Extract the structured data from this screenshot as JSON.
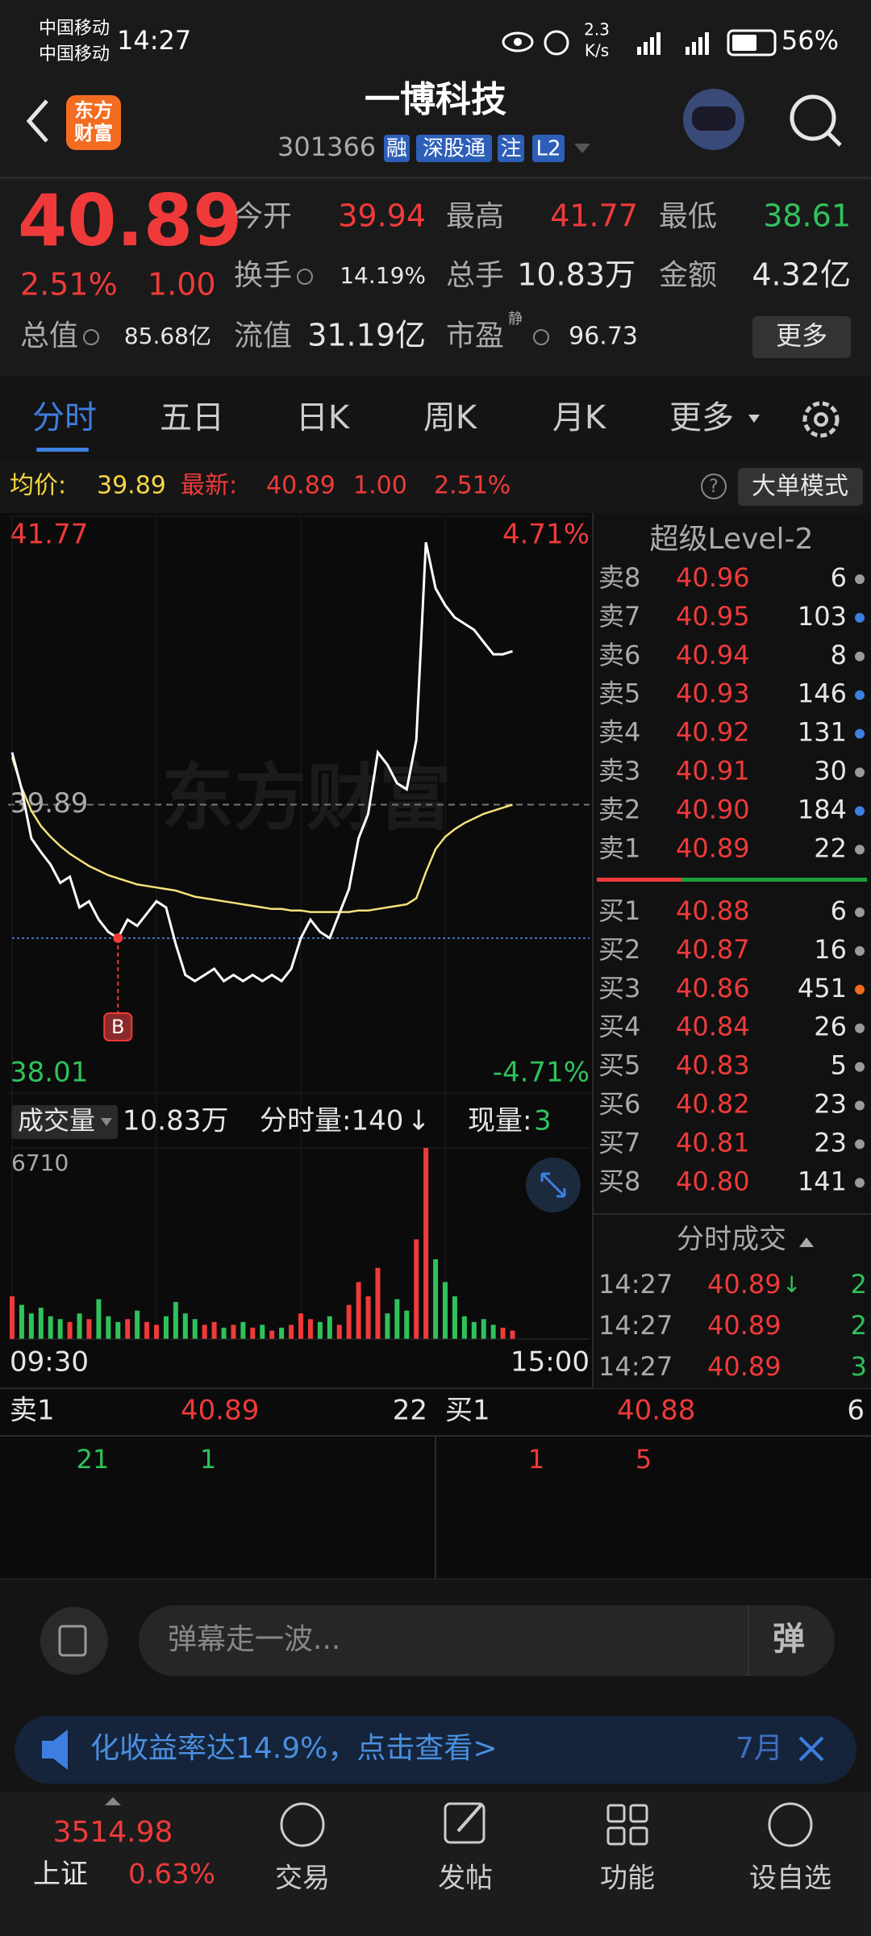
{
  "status_bar": {
    "carrier": [
      "中国移动",
      "中国移动"
    ],
    "time": "14:27",
    "net_speed": [
      "2.3",
      "K/s"
    ],
    "battery": "56%"
  },
  "header": {
    "logo": [
      "东方",
      "财富"
    ],
    "title": "一博科技",
    "code": "301366",
    "tags": [
      "融",
      "深股通",
      "注",
      "L2"
    ]
  },
  "quote": {
    "price": "40.89",
    "change_pct": "2.51%",
    "change": "1.00",
    "stats": [
      {
        "label": "今开",
        "value": "39.94",
        "color": "#f03a3a"
      },
      {
        "label": "最高",
        "value": "41.77",
        "color": "#f03a3a"
      },
      {
        "label": "最低",
        "value": "38.61",
        "color": "#2fc25b"
      },
      {
        "label": "换手",
        "value": "14.19%",
        "color": "#e6e6e6"
      },
      {
        "label": "总手",
        "value": "10.83万",
        "color": "#e6e6e6"
      },
      {
        "label": "金额",
        "value": "4.32亿",
        "color": "#e6e6e6"
      },
      {
        "label": "总值",
        "value": "85.68亿",
        "color": "#e6e6e6"
      },
      {
        "label": "流值",
        "value": "31.19亿",
        "color": "#e6e6e6"
      },
      {
        "label": "市盈",
        "superscript": "静",
        "value": "96.73",
        "color": "#e6e6e6"
      }
    ],
    "more": "更多"
  },
  "tabs": {
    "items": [
      "分时",
      "五日",
      "日K",
      "周K",
      "月K",
      "更多"
    ],
    "active": 0
  },
  "info_bar": {
    "avg_label": "均价:",
    "avg": "39.89",
    "latest_label": "最新:",
    "latest": "40.89",
    "change": "1.00",
    "change_pct": "2.51%",
    "help": "?",
    "mode": "大单模式"
  },
  "intraday": {
    "xlim": [
      0,
      240
    ],
    "time_labels": [
      "09:30",
      "15:00"
    ],
    "ylim": [
      38.01,
      41.77
    ],
    "yticks": [
      38.01,
      39.89,
      41.77
    ],
    "tick_colors": [
      "#2fc25b",
      "#aaaaaa",
      "#f03a3a"
    ],
    "pct_labels": [
      "-4.71%",
      "4.71%"
    ],
    "watermark": "东方财富",
    "x": [
      0,
      4,
      8,
      12,
      16,
      20,
      24,
      28,
      32,
      36,
      40,
      44,
      48,
      52,
      56,
      60,
      64,
      68,
      72,
      76,
      80,
      84,
      88,
      92,
      96,
      100,
      104,
      108,
      112,
      116,
      120,
      124,
      128,
      132,
      136,
      140,
      144,
      148,
      152,
      156,
      160,
      164,
      168,
      172,
      176,
      180,
      184,
      188,
      192,
      196,
      200,
      204,
      208
    ],
    "price": {
      "color": "#ffffff",
      "values": [
        40.23,
        39.99,
        39.67,
        39.58,
        39.5,
        39.38,
        39.42,
        39.22,
        39.26,
        39.14,
        39.06,
        39.02,
        39.14,
        39.1,
        39.18,
        39.26,
        39.22,
        38.98,
        38.78,
        38.74,
        38.78,
        38.82,
        38.74,
        38.78,
        38.74,
        38.78,
        38.74,
        38.78,
        38.74,
        38.82,
        39.02,
        39.14,
        39.06,
        39.02,
        39.18,
        39.34,
        39.67,
        39.83,
        40.23,
        40.15,
        40.03,
        39.99,
        40.31,
        41.6,
        41.3,
        41.19,
        41.11,
        41.07,
        41.03,
        40.95,
        40.87,
        40.87,
        40.89
      ]
    },
    "avg": {
      "color": "#f5e27a",
      "values": [
        40.2,
        40.0,
        39.85,
        39.75,
        39.68,
        39.62,
        39.57,
        39.53,
        39.49,
        39.46,
        39.43,
        39.41,
        39.39,
        39.37,
        39.36,
        39.35,
        39.34,
        39.33,
        39.31,
        39.29,
        39.28,
        39.27,
        39.26,
        39.25,
        39.24,
        39.23,
        39.22,
        39.21,
        39.21,
        39.2,
        39.2,
        39.19,
        39.19,
        39.19,
        39.19,
        39.19,
        39.2,
        39.2,
        39.21,
        39.22,
        39.23,
        39.24,
        39.28,
        39.45,
        39.6,
        39.68,
        39.73,
        39.77,
        39.8,
        39.83,
        39.85,
        39.87,
        39.89
      ]
    },
    "marker": {
      "label": "B",
      "x": 44,
      "price": 39.02
    },
    "volume": {
      "up_color": "#f03a3a",
      "down_color": "#2fc25b",
      "ylim": [
        0,
        6710
      ],
      "yticks": [
        6710
      ],
      "values": [
        1500,
        1200,
        900,
        1100,
        800,
        700,
        600,
        900,
        700,
        1400,
        800,
        600,
        700,
        1000,
        600,
        500,
        800,
        1300,
        900,
        700,
        500,
        600,
        400,
        500,
        600,
        400,
        500,
        300,
        400,
        500,
        900,
        700,
        600,
        800,
        500,
        1200,
        2000,
        1500,
        2500,
        900,
        1400,
        1000,
        3500,
        6710,
        2800,
        2000,
        1500,
        800,
        600,
        700,
        500,
        400,
        300
      ]
    }
  },
  "volume_header": {
    "label": "成交量",
    "total": "10.83万",
    "minute_volume": "分时量:140",
    "arrow": "↓",
    "current_label": "现量:",
    "current": "3"
  },
  "order_book": {
    "title": "超级Level-2",
    "asks": [
      {
        "label": "卖8",
        "price": "40.96",
        "volume": "6",
        "dot": "#9a9a9a"
      },
      {
        "label": "卖7",
        "price": "40.95",
        "volume": "103",
        "dot": "#3d7fe0"
      },
      {
        "label": "卖6",
        "price": "40.94",
        "volume": "8",
        "dot": "#9a9a9a"
      },
      {
        "label": "卖5",
        "price": "40.93",
        "volume": "146",
        "dot": "#3d7fe0"
      },
      {
        "label": "卖4",
        "price": "40.92",
        "volume": "131",
        "dot": "#3d7fe0"
      },
      {
        "label": "卖3",
        "price": "40.91",
        "volume": "30",
        "dot": "#9a9a9a"
      },
      {
        "label": "卖2",
        "price": "40.90",
        "volume": "184",
        "dot": "#3d7fe0"
      },
      {
        "label": "卖1",
        "price": "40.89",
        "volume": "22",
        "dot": "#9a9a9a"
      }
    ],
    "bids": [
      {
        "label": "买1",
        "price": "40.88",
        "volume": "6",
        "dot": "#9a9a9a"
      },
      {
        "label": "买2",
        "price": "40.87",
        "volume": "16",
        "dot": "#9a9a9a"
      },
      {
        "label": "买3",
        "price": "40.86",
        "volume": "451",
        "dot": "#f06a21"
      },
      {
        "label": "买4",
        "price": "40.84",
        "volume": "26",
        "dot": "#9a9a9a"
      },
      {
        "label": "买5",
        "price": "40.83",
        "volume": "5",
        "dot": "#9a9a9a"
      },
      {
        "label": "买6",
        "price": "40.82",
        "volume": "23",
        "dot": "#9a9a9a"
      },
      {
        "label": "买7",
        "price": "40.81",
        "volume": "23",
        "dot": "#9a9a9a"
      },
      {
        "label": "买8",
        "price": "40.80",
        "volume": "141",
        "dot": "#9a9a9a"
      }
    ]
  },
  "trades": {
    "title": "分时成交",
    "rows": [
      {
        "time": "14:27",
        "price": "40.89",
        "arrow": "↓",
        "volume": "2"
      },
      {
        "time": "14:27",
        "price": "40.89",
        "volume": "2"
      },
      {
        "time": "14:27",
        "price": "40.89",
        "volume": "3"
      }
    ]
  },
  "level1": {
    "ask": {
      "label": "卖1",
      "price": "40.89",
      "volume": "22"
    },
    "bid": {
      "label": "买1",
      "price": "40.88",
      "volume": "6"
    },
    "ask_orders": [
      "21",
      "1"
    ],
    "bid_orders": [
      "1",
      "5"
    ]
  },
  "comment": {
    "placeholder": "弹幕走一波...",
    "button": "弹"
  },
  "banner": {
    "text": "化收益率达14.9%，点击查看>",
    "date": "7月"
  },
  "bottom_nav": {
    "index": {
      "value": "3514.98",
      "name": "上证",
      "change_pct": "0.63%"
    },
    "items": [
      "交易",
      "发帖",
      "功能",
      "设自选"
    ]
  }
}
